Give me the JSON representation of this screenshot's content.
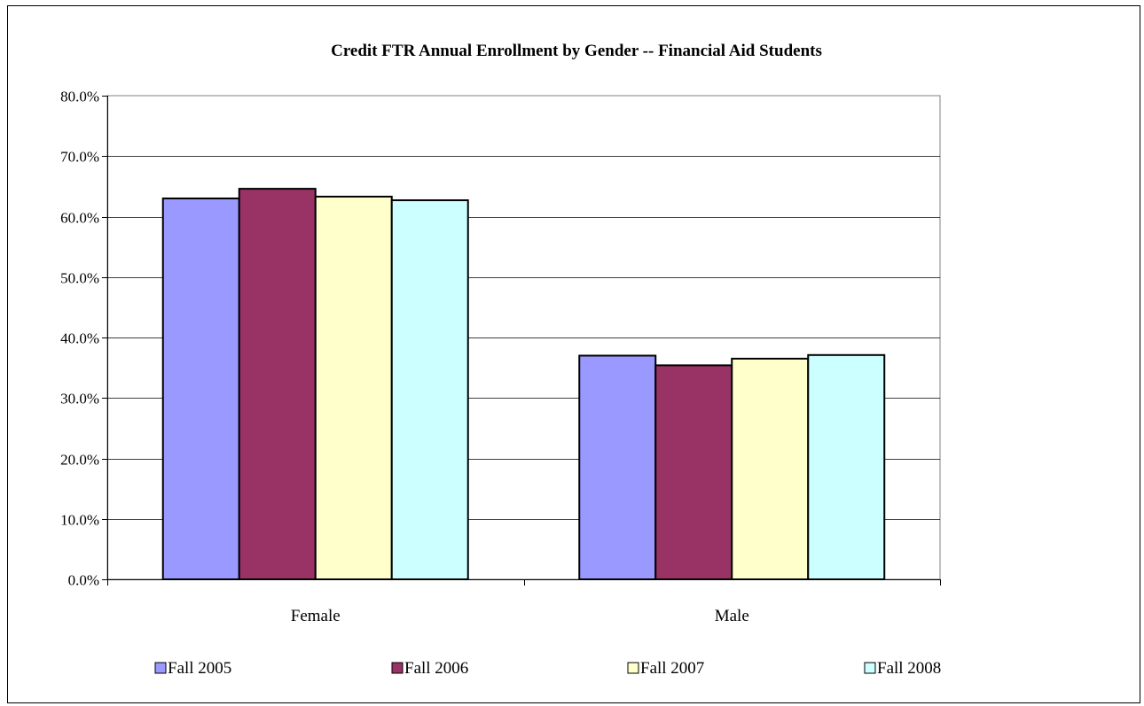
{
  "chart_data": {
    "type": "bar",
    "title": "Credit FTR Annual Enrollment by Gender -- Financial Aid Students",
    "xlabel": "",
    "ylabel": "",
    "categories": [
      "Female",
      "Male"
    ],
    "series": [
      {
        "name": "Fall 2005",
        "color": "#9999ff",
        "values": [
          63.0,
          37.0
        ]
      },
      {
        "name": "Fall 2006",
        "color": "#993366",
        "values": [
          64.6,
          35.4
        ]
      },
      {
        "name": "Fall 2007",
        "color": "#ffffcc",
        "values": [
          63.3,
          36.5
        ]
      },
      {
        "name": "Fall 2008",
        "color": "#ccffff",
        "values": [
          62.7,
          37.1
        ]
      }
    ],
    "ylim": [
      0,
      80
    ],
    "yticks": [
      0,
      10,
      20,
      30,
      40,
      50,
      60,
      70,
      80
    ],
    "ytick_labels": [
      "0.0%",
      "10.0%",
      "20.0%",
      "30.0%",
      "40.0%",
      "50.0%",
      "60.0%",
      "70.0%",
      "80.0%"
    ],
    "grid": true,
    "legend_position": "bottom"
  }
}
